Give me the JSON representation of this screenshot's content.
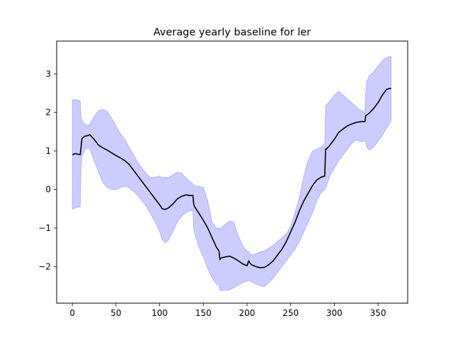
{
  "chart_data": {
    "type": "line",
    "title": "Average yearly baseline for ler",
    "xlabel": "",
    "ylabel": "",
    "xlim": [
      -18,
      384
    ],
    "ylim": [
      -2.95,
      3.85
    ],
    "xticks": [
      0,
      50,
      100,
      150,
      200,
      250,
      300,
      350
    ],
    "yticks": [
      -2,
      -1,
      0,
      1,
      2,
      3
    ],
    "grid": false,
    "colors": {
      "band": "#0000ff",
      "line": "#000000"
    },
    "series": [
      {
        "kind": "line",
        "x": [
          0,
          3,
          6,
          9,
          10,
          11,
          14,
          18,
          20,
          25,
          30,
          35,
          40,
          45,
          50,
          55,
          60,
          65,
          70,
          75,
          80,
          85,
          90,
          95,
          100,
          103,
          106,
          110,
          115,
          120,
          125,
          130,
          135,
          138,
          139,
          140,
          145,
          150,
          155,
          160,
          165,
          168,
          169,
          170,
          175,
          180,
          185,
          190,
          195,
          200,
          202,
          203,
          205,
          210,
          215,
          220,
          225,
          230,
          235,
          240,
          245,
          250,
          255,
          260,
          265,
          270,
          275,
          280,
          285,
          289,
          290,
          291,
          295,
          300,
          305,
          310,
          315,
          320,
          325,
          330,
          335,
          336,
          337,
          340,
          345,
          350,
          355,
          360,
          363,
          365
        ],
        "y": [
          0.9,
          0.93,
          0.92,
          0.9,
          1.1,
          1.32,
          1.38,
          1.4,
          1.42,
          1.3,
          1.15,
          1.08,
          1.02,
          0.95,
          0.88,
          0.82,
          0.75,
          0.65,
          0.5,
          0.35,
          0.2,
          0.05,
          -0.1,
          -0.25,
          -0.4,
          -0.5,
          -0.52,
          -0.48,
          -0.38,
          -0.25,
          -0.18,
          -0.14,
          -0.16,
          -0.15,
          -0.38,
          -0.45,
          -0.62,
          -0.8,
          -1.0,
          -1.25,
          -1.5,
          -1.6,
          -1.82,
          -1.78,
          -1.75,
          -1.73,
          -1.78,
          -1.85,
          -1.93,
          -1.98,
          -1.85,
          -1.9,
          -1.95,
          -2.0,
          -2.03,
          -2.02,
          -1.95,
          -1.85,
          -1.7,
          -1.55,
          -1.35,
          -1.1,
          -0.85,
          -0.55,
          -0.3,
          -0.1,
          0.1,
          0.25,
          0.32,
          0.35,
          1.05,
          1.05,
          1.15,
          1.3,
          1.48,
          1.57,
          1.65,
          1.7,
          1.74,
          1.76,
          1.76,
          1.92,
          1.93,
          1.98,
          2.1,
          2.25,
          2.45,
          2.6,
          2.62,
          2.62
        ]
      },
      {
        "kind": "band",
        "x": [
          0,
          3,
          6,
          9,
          10,
          11,
          14,
          18,
          20,
          25,
          30,
          35,
          40,
          45,
          50,
          55,
          60,
          65,
          70,
          75,
          80,
          85,
          90,
          95,
          100,
          103,
          106,
          110,
          115,
          120,
          125,
          130,
          135,
          138,
          139,
          140,
          145,
          150,
          155,
          160,
          165,
          168,
          169,
          170,
          175,
          180,
          185,
          190,
          195,
          200,
          202,
          203,
          205,
          210,
          215,
          220,
          225,
          230,
          235,
          240,
          245,
          250,
          255,
          260,
          265,
          270,
          275,
          280,
          285,
          289,
          290,
          291,
          295,
          300,
          305,
          310,
          315,
          320,
          325,
          330,
          335,
          336,
          337,
          340,
          345,
          350,
          355,
          360,
          363,
          365
        ],
        "lower": [
          -0.52,
          -0.48,
          -0.46,
          -0.46,
          0.6,
          0.85,
          1.02,
          1.08,
          1.05,
          0.75,
          0.45,
          0.18,
          0.05,
          0.0,
          0.0,
          0.05,
          0.08,
          0.05,
          -0.05,
          -0.15,
          -0.3,
          -0.45,
          -0.65,
          -0.85,
          -1.1,
          -1.3,
          -1.38,
          -1.32,
          -1.1,
          -0.85,
          -0.7,
          -0.6,
          -0.55,
          -0.55,
          -1.0,
          -1.15,
          -1.5,
          -1.75,
          -2.05,
          -2.3,
          -2.45,
          -2.5,
          -2.62,
          -2.62,
          -2.62,
          -2.6,
          -2.55,
          -2.48,
          -2.42,
          -2.38,
          -2.35,
          -2.37,
          -2.4,
          -2.45,
          -2.5,
          -2.52,
          -2.42,
          -2.3,
          -2.15,
          -2.0,
          -1.85,
          -1.7,
          -1.55,
          -1.35,
          -1.1,
          -0.85,
          -0.6,
          -0.3,
          -0.08,
          0.0,
          0.05,
          0.1,
          0.35,
          0.55,
          0.75,
          0.9,
          1.05,
          1.2,
          1.28,
          1.25,
          1.25,
          1.25,
          1.1,
          1.02,
          1.1,
          1.25,
          1.4,
          1.6,
          1.7,
          1.78
        ],
        "upper": [
          2.33,
          2.33,
          2.32,
          2.3,
          1.85,
          1.8,
          1.7,
          1.65,
          1.7,
          1.9,
          2.05,
          2.08,
          2.02,
          1.85,
          1.65,
          1.45,
          1.3,
          1.1,
          0.9,
          0.7,
          0.55,
          0.4,
          0.3,
          0.32,
          0.35,
          0.3,
          0.32,
          0.3,
          0.38,
          0.45,
          0.42,
          0.3,
          0.2,
          0.15,
          0.12,
          0.1,
          0.08,
          0.05,
          -0.3,
          -0.85,
          -1.0,
          -1.0,
          -1.05,
          -1.0,
          -0.9,
          -0.82,
          -0.85,
          -1.2,
          -1.45,
          -1.6,
          -1.62,
          -1.65,
          -1.7,
          -1.67,
          -1.62,
          -1.6,
          -1.52,
          -1.45,
          -1.35,
          -1.25,
          -1.15,
          -0.95,
          -0.6,
          -0.2,
          0.35,
          0.75,
          1.0,
          1.05,
          1.1,
          1.2,
          2.15,
          2.2,
          2.3,
          2.45,
          2.55,
          2.45,
          2.35,
          2.25,
          2.15,
          2.05,
          2.0,
          2.55,
          2.8,
          2.95,
          3.05,
          3.2,
          3.35,
          3.42,
          3.45,
          3.45
        ]
      }
    ]
  }
}
